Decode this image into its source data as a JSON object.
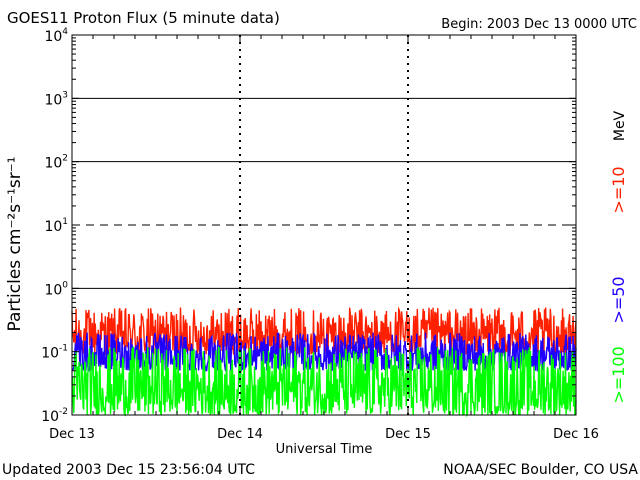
{
  "chart_data": {
    "type": "line",
    "title": "GOES11 Proton Flux (5 minute data)",
    "begin_label": "Begin: 2003 Dec 13 0000 UTC",
    "xlabel": "Universal Time",
    "ylabel": "Particles cm⁻²s⁻¹sr⁻¹",
    "y_scale": "log",
    "ylim": [
      0.01,
      10000
    ],
    "y_ticks": [
      {
        "base": "10",
        "exp": "4"
      },
      {
        "base": "10",
        "exp": "3"
      },
      {
        "base": "10",
        "exp": "2"
      },
      {
        "base": "10",
        "exp": "1"
      },
      {
        "base": "10",
        "exp": "0"
      },
      {
        "base": "10",
        "exp": "-1"
      },
      {
        "base": "10",
        "exp": "-2"
      }
    ],
    "x_ticks": [
      "Dec 13",
      "Dec 14",
      "Dec 15",
      "Dec 16"
    ],
    "xlim_days": [
      0,
      3
    ],
    "reference_lines": [
      {
        "value": 1000,
        "style": "solid"
      },
      {
        "value": 100,
        "style": "solid"
      },
      {
        "value": 10,
        "style": "dashed"
      },
      {
        "value": 1,
        "style": "solid"
      }
    ],
    "legend_unit": "MeV",
    "series": [
      {
        "name": ">=10",
        "color": "#ff2000",
        "typical_range": [
          0.09,
          0.5
        ]
      },
      {
        "name": ">=50",
        "color": "#2000ff",
        "typical_range": [
          0.05,
          0.2
        ]
      },
      {
        "name": ">=100",
        "color": "#00ff00",
        "typical_range": [
          0.01,
          0.12
        ]
      }
    ]
  },
  "footer": {
    "updated": "Updated 2003 Dec 15 23:56:04 UTC",
    "source": "NOAA/SEC Boulder, CO USA"
  }
}
